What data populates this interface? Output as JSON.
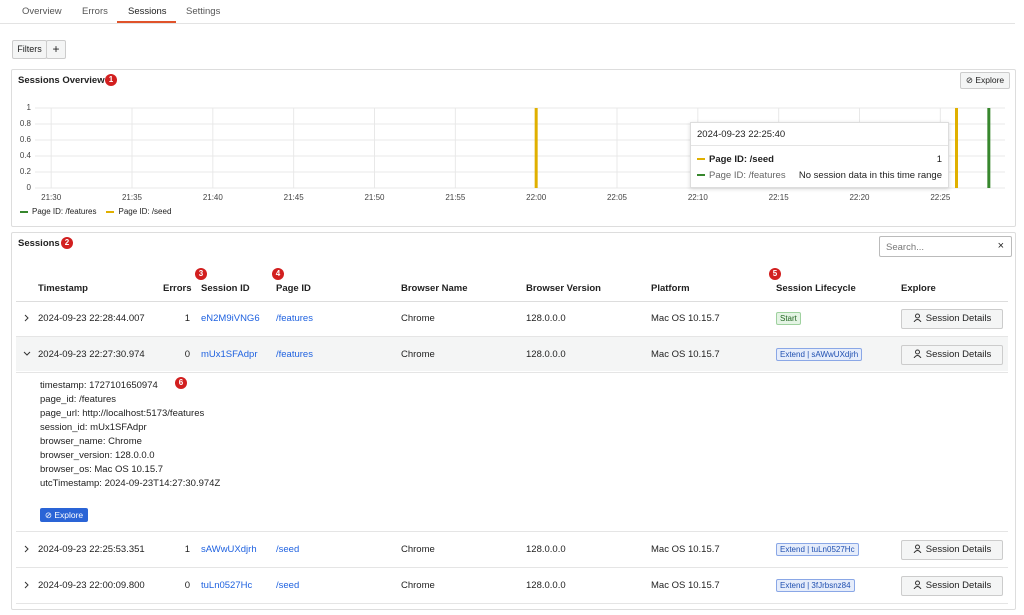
{
  "tabs": [
    "Overview",
    "Errors",
    "Sessions",
    "Settings"
  ],
  "filters": {
    "label": "Filters",
    "add": "+"
  },
  "overview": {
    "title": "Sessions Overview",
    "badge": "1",
    "explore": "Explore",
    "tooltip": {
      "time": "2024-09-23 22:25:40",
      "rows": [
        {
          "label": "Page ID: /seed",
          "value": "1"
        },
        {
          "label": "Page ID: /features",
          "value": "No session data in this time range"
        }
      ]
    }
  },
  "chart_data": {
    "type": "bar",
    "xlim": [
      "21:29",
      "22:29"
    ],
    "xticks": [
      "21:30",
      "21:35",
      "21:40",
      "21:45",
      "21:50",
      "21:55",
      "22:00",
      "22:05",
      "22:10",
      "22:15",
      "22:20",
      "22:25"
    ],
    "ylim": [
      0,
      1
    ],
    "yticks": [
      0,
      0.2,
      0.4,
      0.6,
      0.8,
      1
    ],
    "grid": true,
    "legend": "bottom-left",
    "series": [
      {
        "name": "Page ID: /features",
        "color": "#37872d",
        "x": [
          "22:28"
        ],
        "values": [
          1
        ]
      },
      {
        "name": "Page ID: /seed",
        "color": "#e0b000",
        "x": [
          "22:00",
          "22:26"
        ],
        "values": [
          1,
          1
        ]
      }
    ]
  },
  "sessions": {
    "title": "Sessions",
    "badge": "2",
    "search": "Search...",
    "clear": "×",
    "columns": [
      "Timestamp",
      "Errors",
      "Session ID",
      "Page ID",
      "Browser Name",
      "Browser Version",
      "Platform",
      "Session Lifecycle",
      "Explore"
    ],
    "column_badges": [
      "3",
      "4",
      "5"
    ],
    "details_button": "Session Details",
    "rows": [
      {
        "timestamp": "2024-09-23 22:28:44.007",
        "errors": 1,
        "session_id": "eN2M9iVNG6",
        "page_id": "/features",
        "browser": "Chrome",
        "version": "128.0.0.0",
        "platform": "Mac OS 10.15.7",
        "lifecycle": "Start"
      },
      {
        "timestamp": "2024-09-23 22:27:30.974",
        "errors": 0,
        "session_id": "mUx1SFAdpr",
        "page_id": "/features",
        "browser": "Chrome",
        "version": "128.0.0.0",
        "platform": "Mac OS 10.15.7",
        "lifecycle": "Extend | sAWwUXdjrh"
      },
      {
        "timestamp": "2024-09-23 22:25:53.351",
        "errors": 1,
        "session_id": "sAWwUXdjrh",
        "page_id": "/seed",
        "browser": "Chrome",
        "version": "128.0.0.0",
        "platform": "Mac OS 10.15.7",
        "lifecycle": "Extend | tuLn0527Hc"
      },
      {
        "timestamp": "2024-09-23 22:00:09.800",
        "errors": 0,
        "session_id": "tuLn0527Hc",
        "page_id": "/seed",
        "browser": "Chrome",
        "version": "128.0.0.0",
        "platform": "Mac OS 10.15.7",
        "lifecycle": "Extend | 3fJrbsnz84"
      }
    ],
    "expanded": {
      "badge": "6",
      "explore": "Explore",
      "lines": [
        "timestamp: 1727101650974",
        "page_id: /features",
        "page_url: http://localhost:5173/features",
        "session_id: mUx1SFAdpr",
        "browser_name: Chrome",
        "browser_version: 128.0.0.0",
        "browser_os: Mac OS 10.15.7",
        "utcTimestamp: 2024-09-23T14:27:30.974Z"
      ]
    }
  }
}
